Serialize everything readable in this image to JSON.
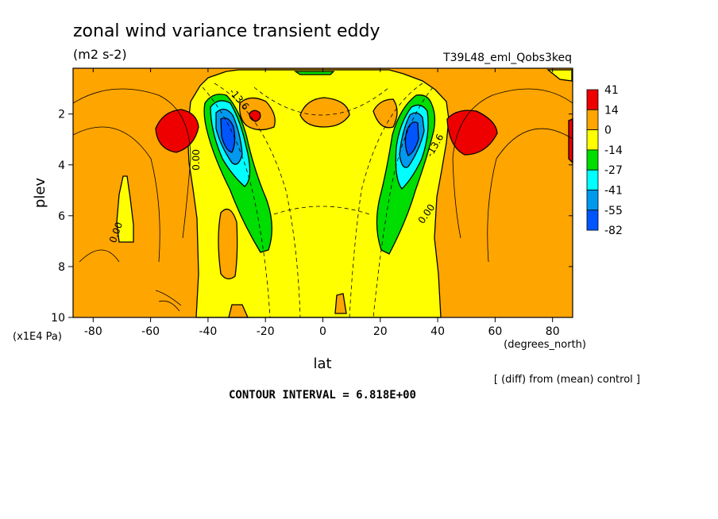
{
  "colors": {
    "red": "#ee0000",
    "orange": "#ffa500",
    "yellow": "#ffff00",
    "green": "#00dd00",
    "cyan": "#00ffff",
    "lightblue": "#0099ee",
    "blue": "#0055ff",
    "line": "#000000",
    "background": "#ffffff"
  },
  "chart_data": {
    "type": "heatmap",
    "title": "zonal wind variance transient eddy",
    "units": "(m2 s-2)",
    "experiment": "T39L48_eml_Qobs3keq",
    "xlabel": "lat",
    "x_units": "(degrees_north)",
    "ylabel": "plev",
    "y_units": "(x1E4 Pa)",
    "xlim": [
      -87,
      87
    ],
    "ylim": [
      10,
      0.2
    ],
    "x_ticks": [
      -80,
      -60,
      -40,
      -20,
      0,
      20,
      40,
      60,
      80
    ],
    "x_tick_labels": [
      "-80",
      "-60",
      "-40",
      "-20",
      "0",
      "20",
      "40",
      "60",
      "80"
    ],
    "y_ticks": [
      2,
      4,
      6,
      8,
      10
    ],
    "y_tick_labels": [
      "2",
      "4",
      "6",
      "8",
      "10"
    ],
    "colorbar_levels": [
      "41",
      "14",
      "0",
      "-14",
      "-27",
      "-41",
      "-55",
      "-82"
    ],
    "colorbar_colors": [
      "red",
      "orange",
      "yellow",
      "green",
      "cyan",
      "lightblue",
      "blue"
    ],
    "contour_labels": [
      {
        "text": "0.00",
        "lat": -43,
        "plev": 3.8,
        "angle": -90
      },
      {
        "text": "0.00",
        "lat": -71,
        "plev": 6.7,
        "angle": -70
      },
      {
        "text": "0.00",
        "lat": 37,
        "plev": 6.0,
        "angle": -55
      },
      {
        "text": "-13.6",
        "lat": -30,
        "plev": 1.5,
        "angle": 50
      },
      {
        "text": "-13.6",
        "lat": 40,
        "plev": 3.3,
        "angle": -60
      }
    ],
    "annotations": {
      "diff_note": "[ (diff) from (mean) control ]",
      "contour_interval": "CONTOUR INTERVAL = 6.818E+00"
    }
  }
}
